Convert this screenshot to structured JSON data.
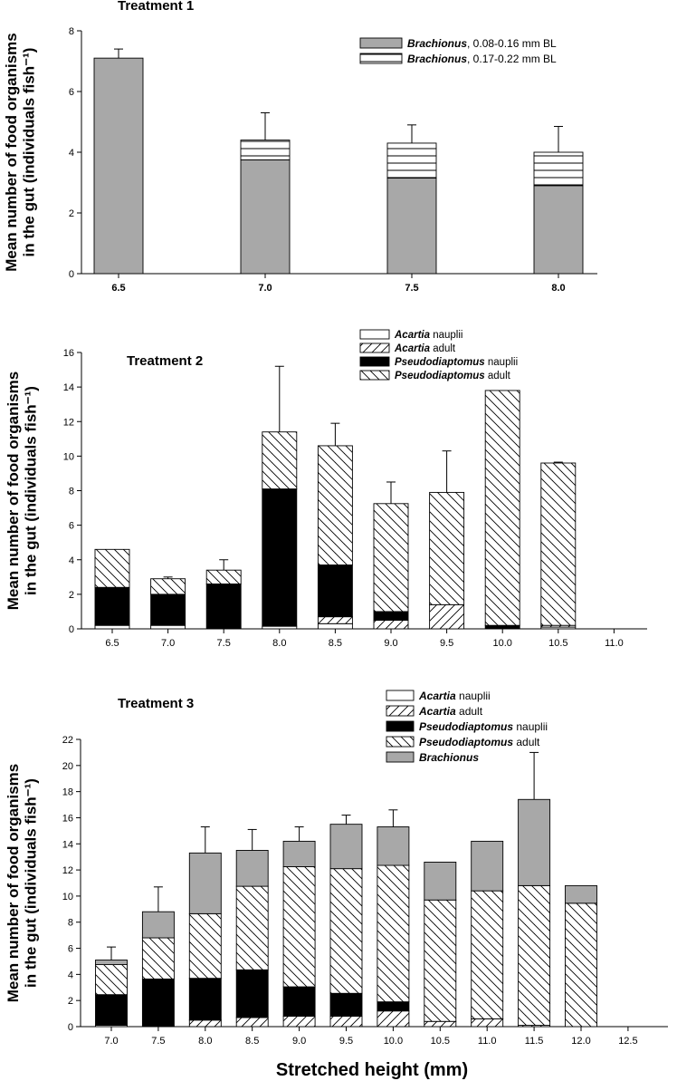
{
  "figure": {
    "x_axis_label": "Stretched height (mm)"
  },
  "chart_data": [
    {
      "type": "bar",
      "stacked": true,
      "title": "Treatment 1",
      "ylabel": "Mean number of food organisms in the gut (individuals fish⁻¹)",
      "xlabel": "",
      "categories": [
        "6.5",
        "7.0",
        "7.5",
        "8.0"
      ],
      "ylim": [
        0,
        8
      ],
      "yticks": [
        "0",
        "2",
        "4",
        "6",
        "8"
      ],
      "grid": false,
      "legend_position": "top-right",
      "series": [
        {
          "name_italic": "Brachionus",
          "name_rest": ", 0.08-0.16 mm BL",
          "fill": "gray",
          "values": [
            7.1,
            3.75,
            3.15,
            2.9
          ]
        },
        {
          "name_italic": "Brachionus",
          "name_rest": ", 0.17-0.22 mm BL",
          "fill": "hlines",
          "values": [
            0,
            0.65,
            1.15,
            1.1
          ]
        }
      ],
      "error_bars_top": [
        7.4,
        5.3,
        4.9,
        4.85
      ]
    },
    {
      "type": "bar",
      "stacked": true,
      "title": "Treatment 2",
      "ylabel": "Mean number of food organisms in the gut (individuals fish⁻¹)",
      "xlabel": "",
      "categories": [
        "6.5",
        "7.0",
        "7.5",
        "8.0",
        "8.5",
        "9.0",
        "9.5",
        "10.0",
        "10.5",
        "11.0"
      ],
      "ylim": [
        0,
        16
      ],
      "yticks": [
        "0",
        "2",
        "4",
        "6",
        "8",
        "10",
        "12",
        "14",
        "16"
      ],
      "grid": false,
      "legend_position": "top-left",
      "series": [
        {
          "name_italic": "Acartia",
          "name_rest": " nauplii",
          "fill": "white",
          "values": [
            0.2,
            0.2,
            0,
            0.15,
            0.3,
            0,
            0,
            0,
            0.1,
            0
          ]
        },
        {
          "name_italic": "Acartia",
          "name_rest": " adult",
          "fill": "diag-up",
          "values": [
            0,
            0,
            0,
            0,
            0.4,
            0.5,
            1.4,
            0,
            0.1,
            0
          ]
        },
        {
          "name_italic": "Pseudodiaptomus",
          "name_rest": " nauplii",
          "fill": "black",
          "values": [
            2.2,
            1.8,
            2.6,
            7.95,
            3.0,
            0.5,
            0,
            0.2,
            0,
            0
          ]
        },
        {
          "name_italic": "Pseudodiaptomus",
          "name_rest": " adult",
          "fill": "diag-down",
          "values": [
            2.2,
            0.9,
            0.8,
            3.3,
            6.9,
            6.25,
            6.5,
            13.6,
            9.4,
            0
          ]
        }
      ],
      "error_bars_top": [
        null,
        3.0,
        4.0,
        15.2,
        11.9,
        8.5,
        10.3,
        null,
        9.65,
        null
      ]
    },
    {
      "type": "bar",
      "stacked": true,
      "title": "Treatment 3",
      "ylabel": "Mean number of food organisms in the gut (individuals fish⁻¹)",
      "xlabel": "Stretched height (mm)",
      "categories": [
        "7.0",
        "7.5",
        "8.0",
        "8.5",
        "9.0",
        "9.5",
        "10.0",
        "10.5",
        "11.0",
        "11.5",
        "12.0",
        "12.5"
      ],
      "ylim": [
        0,
        22
      ],
      "yticks": [
        "0",
        "2",
        "4",
        "6",
        "8",
        "10",
        "12",
        "14",
        "16",
        "18",
        "20",
        "22"
      ],
      "grid": false,
      "legend_position": "top-left",
      "series": [
        {
          "name_italic": "Acartia",
          "name_rest": " nauplii",
          "fill": "white",
          "values": [
            0.1,
            0,
            0,
            0,
            0,
            0,
            0,
            0,
            0,
            0,
            0,
            0
          ]
        },
        {
          "name_italic": "Acartia",
          "name_rest": " adult",
          "fill": "diag-up",
          "values": [
            0,
            0,
            0.5,
            0.7,
            0.8,
            0.8,
            1.2,
            0.4,
            0.6,
            0.1,
            0,
            0
          ]
        },
        {
          "name_italic": "Pseudodiaptomus",
          "name_rest": " nauplii",
          "fill": "black",
          "values": [
            2.35,
            3.65,
            3.2,
            3.65,
            2.25,
            1.75,
            0.7,
            0,
            0,
            0,
            0,
            0
          ]
        },
        {
          "name_italic": "Pseudodiaptomus",
          "name_rest": " adult",
          "fill": "diag-down",
          "values": [
            2.3,
            3.15,
            4.95,
            6.4,
            9.2,
            9.55,
            10.45,
            9.3,
            9.8,
            10.7,
            9.45,
            0
          ]
        },
        {
          "name_italic": "Brachionus",
          "name_rest": "",
          "fill": "gray",
          "values": [
            0.35,
            2.0,
            4.65,
            2.75,
            1.95,
            3.4,
            2.95,
            2.9,
            3.8,
            6.6,
            1.35,
            0
          ]
        }
      ],
      "error_bars_top": [
        6.1,
        10.7,
        15.3,
        15.1,
        15.3,
        16.2,
        16.6,
        null,
        null,
        21.0,
        null,
        null
      ]
    }
  ]
}
